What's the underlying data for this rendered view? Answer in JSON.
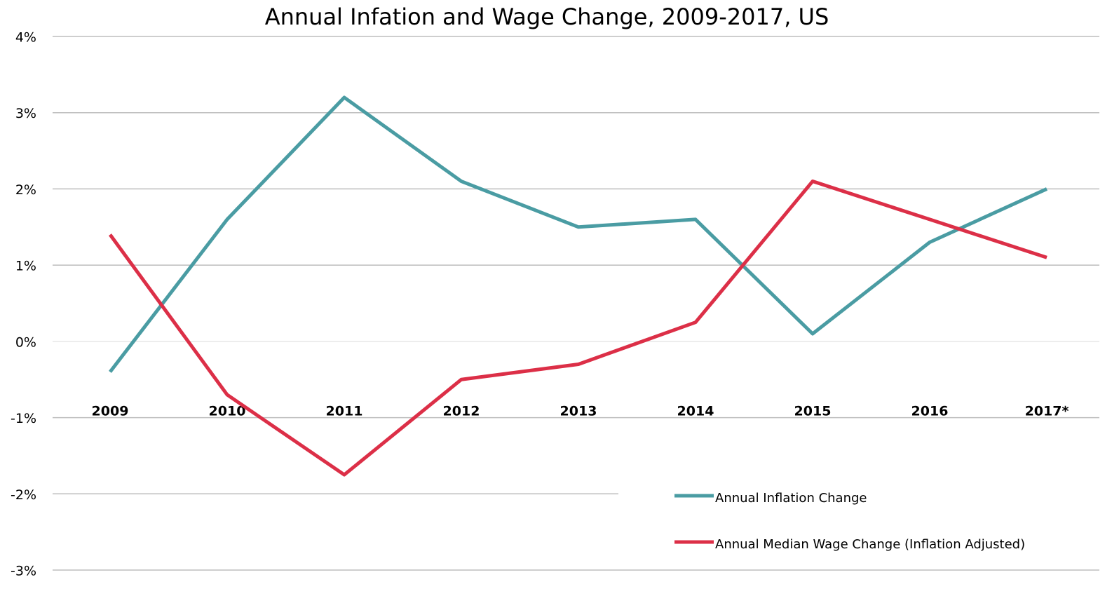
{
  "chart_data": {
    "type": "line",
    "title": "Annual Infation and Wage Change, 2009-2017, US",
    "categories": [
      "2009",
      "2010",
      "2011",
      "2012",
      "2013",
      "2014",
      "2015",
      "2016",
      "2017*"
    ],
    "series": [
      {
        "name": "Annual Inflation Change",
        "color": "#4a9ca3",
        "values": [
          -0.4,
          1.6,
          3.2,
          2.1,
          1.5,
          1.6,
          0.1,
          1.3,
          2.0
        ]
      },
      {
        "name": "Annual Median Wage Change (Inflation Adjusted)",
        "color": "#dc2f47",
        "values": [
          1.4,
          -0.7,
          -1.75,
          -0.5,
          -0.3,
          0.25,
          2.1,
          1.6,
          1.1
        ]
      }
    ],
    "ylim": [
      -3,
      4
    ],
    "yticks": [
      {
        "value": -3,
        "label": "-3%"
      },
      {
        "value": -2,
        "label": "-2%"
      },
      {
        "value": -1,
        "label": "-1%"
      },
      {
        "value": 0,
        "label": "0%"
      },
      {
        "value": 1,
        "label": "1%"
      },
      {
        "value": 2,
        "label": "2%"
      },
      {
        "value": 3,
        "label": "3%"
      },
      {
        "value": 4,
        "label": "4%"
      }
    ],
    "grid": true,
    "legend": "lower right"
  }
}
